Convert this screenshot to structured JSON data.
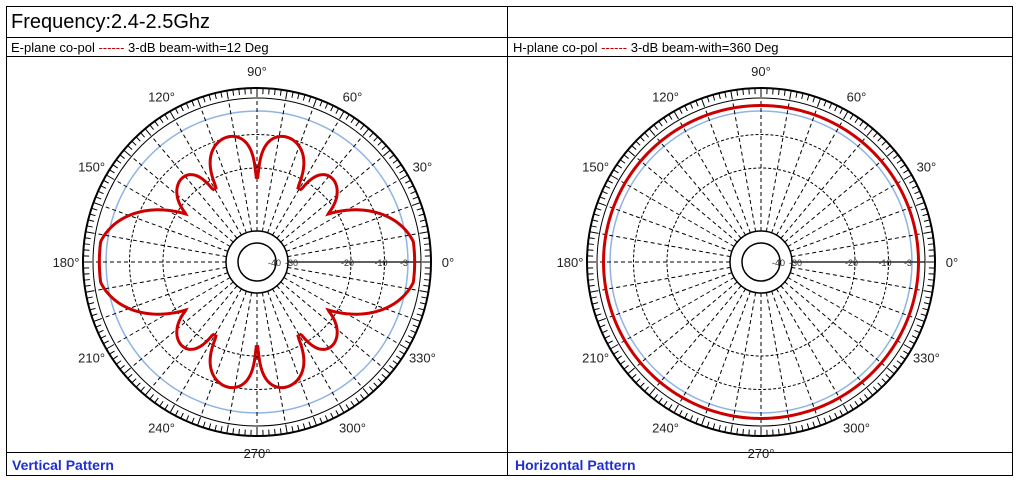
{
  "header": {
    "frequency": "Frequency:2.4-2.5Ghz"
  },
  "panels": [
    {
      "label_prefix": "E-plane co-pol ",
      "label_dashes": "------",
      "label_suffix": " 3-dB beam-with=12 Deg",
      "footer": "Vertical Pattern"
    },
    {
      "label_prefix": "H-plane co-pol ",
      "label_dashes": "------",
      "label_suffix": " 3-dB beam-with=360 Deg",
      "footer": "Horizontal Pattern"
    }
  ],
  "colors": {
    "pattern": "#cc0000",
    "reference_circle": "#8fb4e3",
    "grid": "#000000",
    "footer_text": "#1f2fd1"
  },
  "chart_data": [
    {
      "type": "polar",
      "plane": "E-plane",
      "angle_labels": [
        "0°",
        "30°",
        "60°",
        "90°",
        "120°",
        "150°",
        "180°",
        "210°",
        "240°",
        "270°",
        "300°",
        "330°"
      ],
      "radial_labels": [
        "-40",
        "-30",
        "-20",
        "-10",
        "-3"
      ],
      "radial_range_db": [
        -40,
        0
      ],
      "beamwidth_3db_deg": 12,
      "pattern": "two main lobes along 0° and 180° with ripple side lobes near 90° and 270°"
    },
    {
      "type": "polar",
      "plane": "H-plane",
      "angle_labels": [
        "0°",
        "30°",
        "60°",
        "90°",
        "120°",
        "150°",
        "180°",
        "210°",
        "240°",
        "270°",
        "300°",
        "330°"
      ],
      "radial_labels": [
        "-40",
        "-30",
        "-20",
        "-10",
        "-3"
      ],
      "radial_range_db": [
        -40,
        0
      ],
      "beamwidth_3db_deg": 360,
      "pattern": "omnidirectional, approximately -1 dB at all angles"
    }
  ]
}
